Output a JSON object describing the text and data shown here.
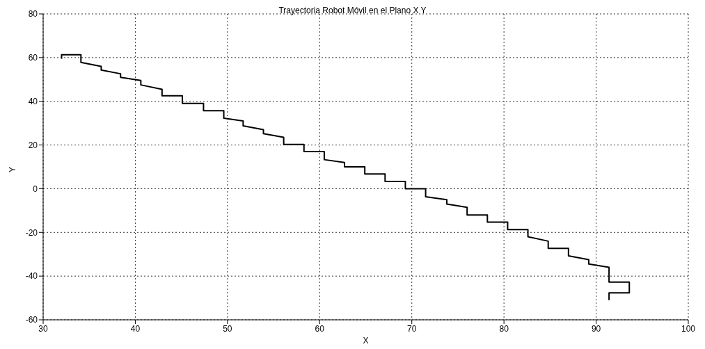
{
  "chart_data": {
    "type": "line",
    "title": "Trayectoria Robot Móvil en el Plano X Y",
    "xlabel": "X",
    "ylabel": "Y",
    "xlim": [
      30,
      100
    ],
    "xticks": [
      30,
      40,
      50,
      60,
      70,
      80,
      90,
      100
    ],
    "ylim": [
      -60,
      80
    ],
    "yticks": [
      -60,
      -40,
      -20,
      0,
      20,
      40,
      60,
      80
    ],
    "grid": true,
    "marker": "none",
    "line_style": "solid",
    "series": [
      {
        "color": "#000000",
        "x": [
          32,
          32,
          34.1,
          34.1,
          36.3,
          36.3,
          38.4,
          38.4,
          40.6,
          40.6,
          42.9,
          42.9,
          45.1,
          45.1,
          47.4,
          47.4,
          49.6,
          49.6,
          51.7,
          51.7,
          53.9,
          53.9,
          56.1,
          56.1,
          58.3,
          58.3,
          60.5,
          60.5,
          62.7,
          62.7,
          64.9,
          64.9,
          67.1,
          67.1,
          69.3,
          69.3,
          71.5,
          71.5,
          73.8,
          73.8,
          76,
          76,
          78.2,
          78.2,
          80.4,
          80.4,
          82.6,
          82.6,
          84.8,
          84.8,
          87,
          87,
          89.2,
          89.2,
          91.4,
          91.4,
          93.6,
          93.6,
          91.4,
          91.4
        ],
        "values": [
          59.5,
          61.3,
          61.3,
          57.8,
          56,
          54.3,
          52.6,
          51,
          49.5,
          47.5,
          45.5,
          42.5,
          42.5,
          39,
          39,
          35.7,
          35.7,
          32.3,
          31,
          28.8,
          27,
          25.2,
          23.5,
          20.3,
          20.3,
          17,
          17,
          13.3,
          12,
          10,
          10,
          6.7,
          6.7,
          3.3,
          3.3,
          0,
          0,
          -3.7,
          -5,
          -7,
          -8.5,
          -12,
          -12,
          -15.3,
          -15.3,
          -18.7,
          -18.7,
          -22,
          -24,
          -27.3,
          -27.3,
          -30.7,
          -32.5,
          -34.5,
          -36,
          -42.7,
          -42.7,
          -47.7,
          -47.7,
          -51
        ]
      }
    ]
  }
}
